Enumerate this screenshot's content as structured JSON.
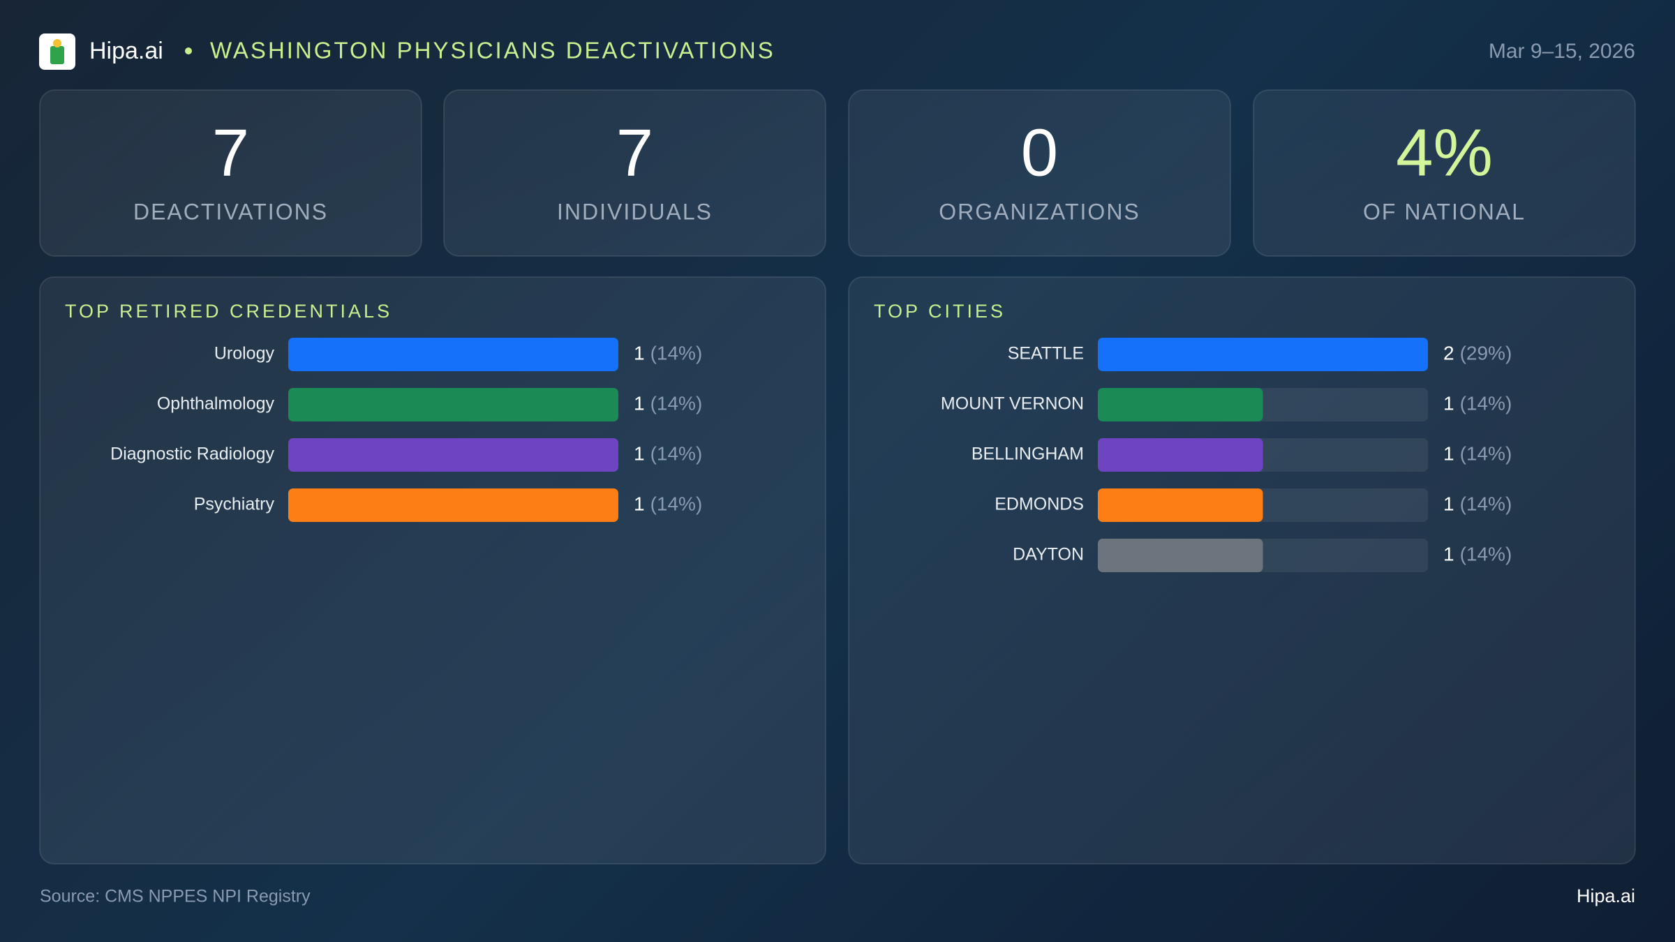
{
  "header": {
    "brand": "Hipa.ai",
    "title": "WASHINGTON PHYSICIANS DEACTIVATIONS",
    "date": "Mar 9–15, 2026"
  },
  "kpis": [
    {
      "value": "7",
      "label": "DEACTIVATIONS"
    },
    {
      "value": "7",
      "label": "INDIVIDUALS"
    },
    {
      "value": "0",
      "label": "ORGANIZATIONS"
    },
    {
      "value": "4%",
      "label": "OF NATIONAL"
    }
  ],
  "chart_data": [
    {
      "type": "bar",
      "title": "TOP RETIRED CREDENTIALS",
      "categories": [
        "Urology",
        "Ophthalmology",
        "Diagnostic Radiology",
        "Psychiatry"
      ],
      "values": [
        1,
        1,
        1,
        1
      ],
      "percent_labels": [
        "(14%)",
        "(14%)",
        "(14%)",
        "(14%)"
      ],
      "colors": [
        "#1570fa",
        "#1b8a55",
        "#6f44c2",
        "#fd7e14"
      ],
      "xlim": [
        0,
        1
      ]
    },
    {
      "type": "bar",
      "title": "TOP CITIES",
      "categories": [
        "SEATTLE",
        "MOUNT VERNON",
        "BELLINGHAM",
        "EDMONDS",
        "DAYTON"
      ],
      "values": [
        2,
        1,
        1,
        1,
        1
      ],
      "percent_labels": [
        "(29%)",
        "(14%)",
        "(14%)",
        "(14%)",
        "(14%)"
      ],
      "colors": [
        "#1570fa",
        "#1b8a55",
        "#6f44c2",
        "#fd7e14",
        "#6c757d"
      ],
      "xlim": [
        0,
        2
      ]
    }
  ],
  "footer": {
    "source": "Source: CMS NPPES NPI Registry",
    "brand": "Hipa.ai"
  }
}
